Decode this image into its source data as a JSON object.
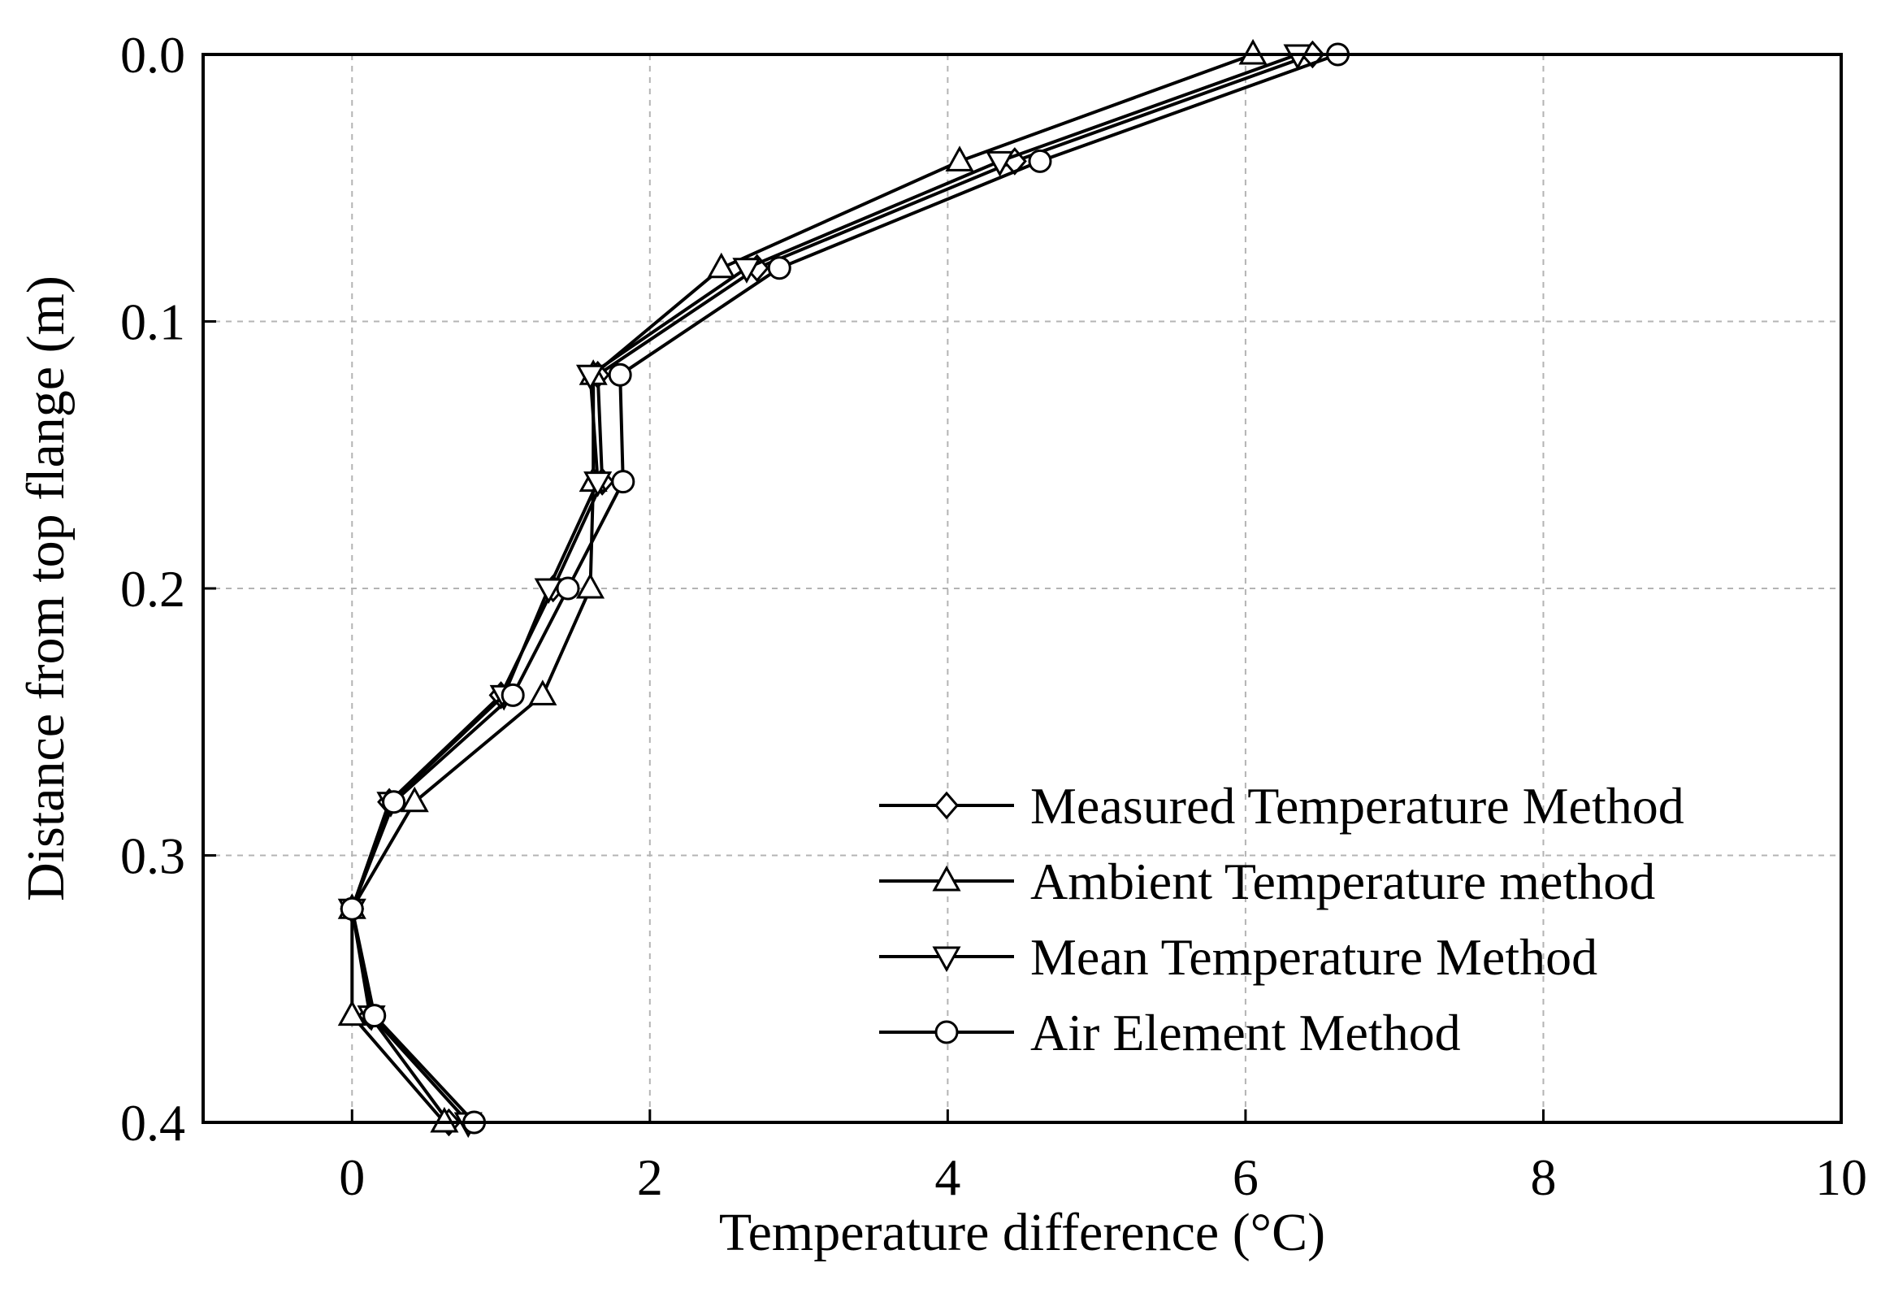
{
  "chart_data": {
    "type": "line",
    "title": "",
    "xlabel": "Temperature difference (°C)",
    "ylabel": "Distance from top flange (m)",
    "xlim": [
      -1,
      10
    ],
    "ylim": [
      0.0,
      0.4
    ],
    "y_inverted": true,
    "grid": true,
    "legend_position": "bottom-right",
    "xticks": [
      0,
      2,
      4,
      6,
      8,
      10
    ],
    "xtick_labels": [
      "0",
      "2",
      "4",
      "6",
      "8",
      "10"
    ],
    "yticks": [
      0.0,
      0.1,
      0.2,
      0.3,
      0.4
    ],
    "ytick_labels": [
      "0.0",
      "0.1",
      "0.2",
      "0.3",
      "0.4"
    ],
    "y": [
      0.0,
      0.04,
      0.08,
      0.12,
      0.16,
      0.2,
      0.24,
      0.28,
      0.32,
      0.36,
      0.4
    ],
    "series": [
      {
        "name": "Measured Temperature Method",
        "marker": "diamond",
        "x": [
          6.45,
          4.45,
          2.72,
          1.65,
          1.68,
          1.35,
          1.0,
          0.25,
          0.0,
          0.12,
          0.65
        ]
      },
      {
        "name": "Ambient Temperature method",
        "marker": "triangle-up",
        "x": [
          6.05,
          4.08,
          2.48,
          1.62,
          1.62,
          1.6,
          1.28,
          0.42,
          0.0,
          0.0,
          0.62
        ]
      },
      {
        "name": "Mean Temperature Method",
        "marker": "triangle-down",
        "x": [
          6.35,
          4.35,
          2.65,
          1.6,
          1.65,
          1.32,
          1.02,
          0.26,
          0.0,
          0.13,
          0.78
        ]
      },
      {
        "name": "Air Element Method",
        "marker": "circle",
        "x": [
          6.62,
          4.62,
          2.87,
          1.8,
          1.82,
          1.45,
          1.08,
          0.28,
          0.0,
          0.15,
          0.82
        ]
      }
    ]
  },
  "colors": {
    "line": "#000000",
    "marker_fill": "#ffffff",
    "grid": "#b4b4b4"
  }
}
